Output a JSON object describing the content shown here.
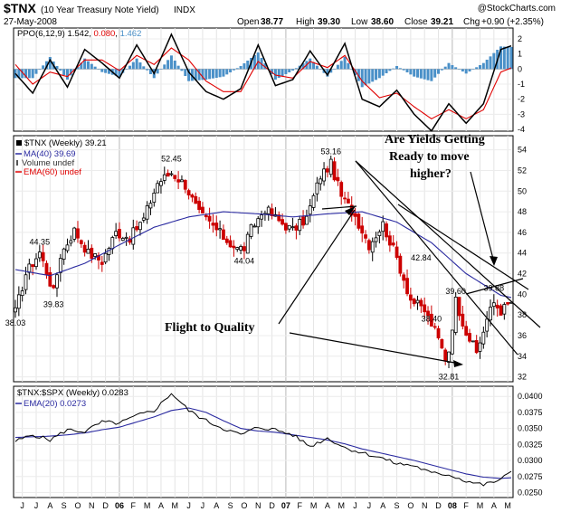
{
  "header": {
    "symbol": "$TNX",
    "name": "(10 Year Treasury Note Yield)",
    "exchange": "INDX",
    "watermark": "@StockCharts.com",
    "date": "27-May-2008",
    "open_label": "Open",
    "open": "38.77",
    "high_label": "High",
    "high": "39.30",
    "low_label": "Low",
    "low": "38.60",
    "close_label": "Close",
    "close": "39.21",
    "chg_label": "Chg",
    "chg": "+0.90 (+2.35%)"
  },
  "ppo_panel": {
    "legend_label": "PPO(6,12,9)",
    "value1": "1.542",
    "value2": "0.080",
    "value3": "1.462",
    "colors": {
      "ppo": "#000000",
      "signal": "#e00000",
      "hist": "#4a90c8"
    }
  },
  "price_panel": {
    "legend_main": "$TNX (Weekly) 39.21",
    "legend_ma": "MA(40) 39.69",
    "legend_volume": "Volume undef",
    "legend_ema": "EMA(60) undef",
    "colors": {
      "up": "#000000",
      "down": "#cc0000",
      "ma": "#2a2aa0",
      "ema": "#e00000"
    }
  },
  "ratio_panel": {
    "legend_main": "$TNX:$SPX (Weekly) 0.0283",
    "legend_ema": "EMA(20) 0.0273",
    "colors": {
      "ratio": "#000000",
      "ema": "#2a2aa0"
    }
  },
  "annotations": {
    "yields_line1": "Are Yields Getting",
    "yields_line2": "Ready to move",
    "yields_line3": "higher?",
    "flight": "Flight to Quality"
  },
  "price_labels": [
    {
      "text": "38.03",
      "x": 0,
      "y": 38.03
    },
    {
      "text": "44.35",
      "x": 7,
      "y": 44.35
    },
    {
      "text": "39.83",
      "x": 11,
      "y": 39.83
    },
    {
      "text": "52.45",
      "x": 45,
      "y": 52.45
    },
    {
      "text": "44.04",
      "x": 66,
      "y": 44.04
    },
    {
      "text": "53.16",
      "x": 91,
      "y": 53.16
    },
    {
      "text": "42.84",
      "x": 117,
      "y": 42.84
    },
    {
      "text": "38.40",
      "x": 120,
      "y": 38.4
    },
    {
      "text": "39.60",
      "x": 127,
      "y": 39.6
    },
    {
      "text": "32.81",
      "x": 125,
      "y": 32.81
    },
    {
      "text": "39.88",
      "x": 138,
      "y": 39.88
    }
  ],
  "chart_data": [
    {
      "type": "line",
      "title": "PPO(6,12,9)",
      "ylim": [
        -4,
        2.6
      ],
      "yticks": [
        "2",
        "1",
        "0",
        "-1",
        "-2",
        "-3",
        "-4"
      ],
      "x": [
        0,
        5,
        10,
        15,
        20,
        25,
        30,
        35,
        40,
        45,
        50,
        55,
        60,
        65,
        70,
        75,
        80,
        85,
        90,
        95,
        100,
        105,
        110,
        115,
        120,
        125,
        130,
        135,
        140,
        143
      ],
      "series": [
        {
          "name": "PPO",
          "values": [
            -0.3,
            -1.6,
            0.6,
            -1.2,
            1.3,
            0.4,
            -0.6,
            1.6,
            -0.3,
            2.3,
            -0.2,
            -1.5,
            -2.0,
            -1.3,
            1.6,
            -1.1,
            -0.7,
            1.2,
            -0.4,
            1.7,
            -2.0,
            -2.5,
            -1.4,
            -3.0,
            -4.1,
            -2.3,
            -3.6,
            -2.3,
            1.3,
            1.54
          ]
        },
        {
          "name": "Signal",
          "values": [
            0.3,
            -1.0,
            -0.2,
            -0.5,
            0.6,
            0.6,
            -0.1,
            0.9,
            0.3,
            1.4,
            0.6,
            -0.8,
            -1.5,
            -1.5,
            0.5,
            -0.4,
            -0.6,
            0.5,
            0.1,
            0.9,
            -0.8,
            -1.9,
            -1.6,
            -2.5,
            -3.3,
            -2.7,
            -3.3,
            -2.7,
            -0.2,
            0.08
          ]
        }
      ]
    },
    {
      "type": "candlestick",
      "title": "$TNX (Weekly) 39.21",
      "ylim": [
        31.7,
        55.2
      ],
      "yticks": [
        "54",
        "52",
        "50",
        "48",
        "46",
        "44",
        "42",
        "40",
        "38",
        "36",
        "34",
        "32"
      ],
      "anchors_x": [
        0,
        3,
        7,
        11,
        13,
        17,
        21,
        25,
        29,
        33,
        37,
        41,
        45,
        49,
        53,
        57,
        61,
        64,
        66,
        68,
        72,
        76,
        80,
        84,
        88,
        91,
        94,
        98,
        102,
        106,
        110,
        114,
        118,
        121,
        124,
        125,
        127,
        130,
        133,
        136,
        138,
        140,
        143
      ],
      "anchors_close": [
        38.3,
        42.0,
        44.1,
        40.2,
        43.8,
        46.2,
        44.0,
        43.2,
        46.0,
        45.5,
        47.3,
        50.8,
        51.8,
        50.6,
        47.8,
        46.6,
        45.2,
        44.4,
        44.5,
        46.3,
        48.3,
        47.1,
        46.2,
        47.4,
        51.5,
        52.6,
        49.5,
        47.6,
        44.8,
        46.8,
        43.5,
        39.5,
        38.4,
        36.5,
        33.8,
        34.6,
        39.4,
        36.4,
        34.3,
        37.6,
        39.2,
        38.4,
        39.21
      ],
      "ma40_x": [
        0,
        10,
        20,
        30,
        40,
        50,
        60,
        70,
        80,
        90,
        100,
        110,
        120,
        130,
        140,
        143
      ],
      "ma40_values": [
        42.4,
        41.8,
        43.0,
        44.8,
        46.5,
        47.5,
        48.0,
        47.8,
        47.5,
        47.8,
        48.0,
        47.0,
        45.0,
        42.0,
        39.9,
        39.69
      ],
      "labels_text": [
        "38.03",
        "44.35",
        "39.83",
        "52.45",
        "44.04",
        "53.16",
        "42.84",
        "38.40",
        "39.60",
        "32.81",
        "39.88"
      ]
    },
    {
      "type": "line",
      "title": "$TNX:$SPX (Weekly) 0.0283",
      "ylim": [
        0.0245,
        0.0413
      ],
      "yticks": [
        "0.0400",
        "0.0375",
        "0.0350",
        "0.0325",
        "0.0300",
        "0.0275",
        "0.0250"
      ],
      "x": [
        0,
        5,
        10,
        15,
        20,
        25,
        30,
        35,
        40,
        45,
        50,
        55,
        60,
        65,
        70,
        75,
        80,
        85,
        90,
        95,
        100,
        105,
        110,
        115,
        120,
        125,
        130,
        135,
        140,
        143
      ],
      "series": [
        {
          "name": "$TNX:$SPX",
          "values": [
            0.033,
            0.034,
            0.0332,
            0.0348,
            0.0345,
            0.036,
            0.0358,
            0.037,
            0.0378,
            0.0405,
            0.0378,
            0.0362,
            0.035,
            0.034,
            0.0352,
            0.0348,
            0.034,
            0.0322,
            0.0335,
            0.032,
            0.0312,
            0.0305,
            0.0295,
            0.0292,
            0.028,
            0.0278,
            0.0268,
            0.0262,
            0.027,
            0.0283
          ]
        },
        {
          "name": "EMA(20)",
          "values": [
            0.0336,
            0.0337,
            0.0338,
            0.034,
            0.0343,
            0.0348,
            0.0352,
            0.036,
            0.0368,
            0.0378,
            0.0382,
            0.0375,
            0.0362,
            0.035,
            0.0346,
            0.0344,
            0.034,
            0.0336,
            0.0332,
            0.0326,
            0.0318,
            0.0312,
            0.0306,
            0.03,
            0.0293,
            0.0286,
            0.0279,
            0.0274,
            0.0272,
            0.0273
          ]
        }
      ]
    }
  ],
  "x_axis": {
    "labels": [
      "J",
      "J",
      "A",
      "S",
      "O",
      "N",
      "D",
      "06",
      "F",
      "M",
      "A",
      "M",
      "J",
      "J",
      "A",
      "S",
      "O",
      "N",
      "D",
      "07",
      "F",
      "M",
      "A",
      "M",
      "J",
      "J",
      "A",
      "S",
      "O",
      "N",
      "D",
      "08",
      "F",
      "M",
      "A",
      "M"
    ],
    "bold_indices": [
      7,
      19,
      31
    ]
  }
}
